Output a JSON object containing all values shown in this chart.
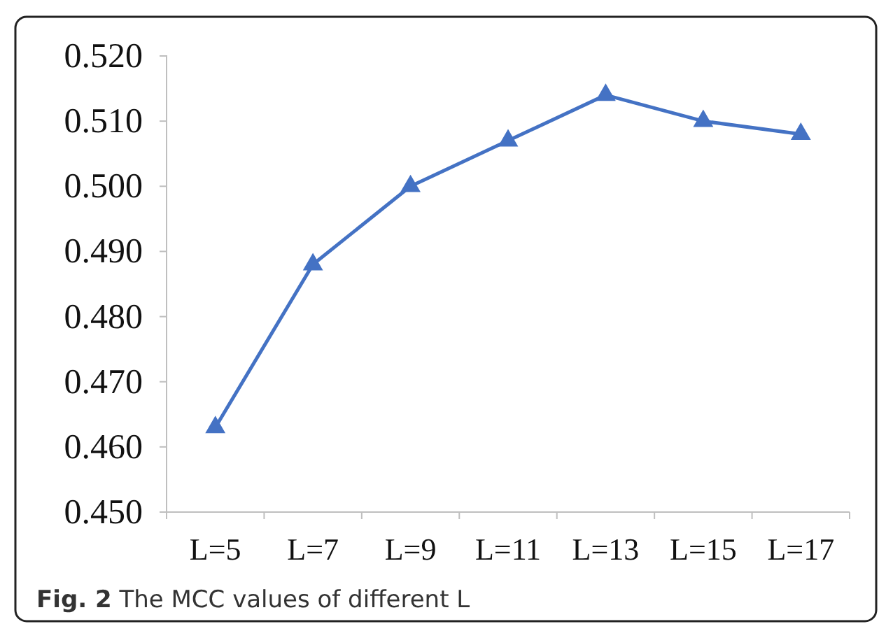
{
  "chart_data": {
    "type": "line",
    "categories": [
      "L=5",
      "L=7",
      "L=9",
      "L=11",
      "L=13",
      "L=15",
      "L=17"
    ],
    "series": [
      {
        "color": "#4472c4",
        "values": [
          0.463,
          0.488,
          0.5,
          0.507,
          0.514,
          0.51,
          0.508
        ]
      }
    ],
    "ylim": [
      0.45,
      0.52
    ],
    "yticks": [
      {
        "value": 0.45,
        "label": "0.450"
      },
      {
        "value": 0.46,
        "label": "0.460"
      },
      {
        "value": 0.47,
        "label": "0.470"
      },
      {
        "value": 0.48,
        "label": "0.480"
      },
      {
        "value": 0.49,
        "label": "0.490"
      },
      {
        "value": 0.5,
        "label": "0.500"
      },
      {
        "value": 0.51,
        "label": "0.510"
      },
      {
        "value": 0.52,
        "label": "0.520"
      }
    ],
    "marker": "triangle",
    "line_style": "solid",
    "annotations": [
      "Fig. 2 The MCC values of different L"
    ]
  }
}
